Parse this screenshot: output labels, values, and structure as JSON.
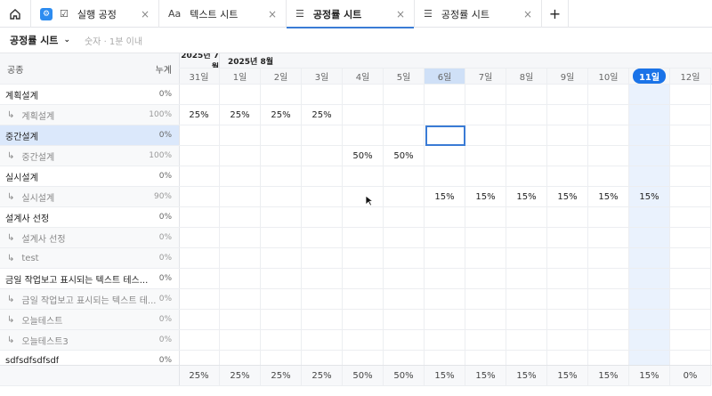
{
  "tabs": [
    {
      "label": "실행 공정",
      "icon": "checkbox-icon",
      "close": "×"
    },
    {
      "label": "텍스트 시트",
      "icon": "text-format-icon",
      "close": "×"
    },
    {
      "label": "공정률 시트",
      "icon": "numbered-list-icon",
      "close": "×",
      "active": true
    },
    {
      "label": "공정률 시트",
      "icon": "numbered-list-icon",
      "close": "×"
    }
  ],
  "add_tab": "+",
  "toolbar": {
    "sheet_name": "공정률 시트",
    "hint": "숫자 · 1분 이내"
  },
  "header": {
    "col_name": "공종",
    "col_total": "누계",
    "months": [
      "2025년 7월",
      "2025년 8월"
    ],
    "days": [
      "31일",
      "1일",
      "2일",
      "3일",
      "4일",
      "5일",
      "6일",
      "7일",
      "8일",
      "9일",
      "10일",
      "11일",
      "12일"
    ],
    "today": "11일",
    "selected_day": "6일"
  },
  "rows": [
    {
      "name": "계획설계",
      "total": "0%",
      "child": false,
      "values": [
        "",
        "",
        "",
        "",
        "",
        "",
        "",
        "",
        "",
        "",
        "",
        "",
        ""
      ]
    },
    {
      "name": "계획설계",
      "total": "100%",
      "child": true,
      "values": [
        "25%",
        "25%",
        "25%",
        "25%",
        "",
        "",
        "",
        "",
        "",
        "",
        "",
        "",
        ""
      ]
    },
    {
      "name": "중간설계",
      "total": "0%",
      "child": false,
      "selected": true,
      "values": [
        "",
        "",
        "",
        "",
        "",
        "",
        "",
        "",
        "",
        "",
        "",
        "",
        ""
      ]
    },
    {
      "name": "중간설계",
      "total": "100%",
      "child": true,
      "values": [
        "",
        "",
        "",
        "",
        "50%",
        "50%",
        "",
        "",
        "",
        "",
        "",
        "",
        ""
      ]
    },
    {
      "name": "실시설계",
      "total": "0%",
      "child": false,
      "values": [
        "",
        "",
        "",
        "",
        "",
        "",
        "",
        "",
        "",
        "",
        "",
        "",
        ""
      ]
    },
    {
      "name": "실시설계",
      "total": "90%",
      "child": true,
      "values": [
        "",
        "",
        "",
        "",
        "",
        "",
        "15%",
        "15%",
        "15%",
        "15%",
        "15%",
        "15%",
        ""
      ]
    },
    {
      "name": "설계사 선정",
      "total": "0%",
      "child": false,
      "values": []
    },
    {
      "name": "설계사 선정",
      "total": "0%",
      "child": true,
      "values": []
    },
    {
      "name": "test",
      "total": "0%",
      "child": true,
      "values": []
    },
    {
      "name": "금일 작업보고 표시되는 텍스트 테스...",
      "total": "0%",
      "child": false,
      "values": []
    },
    {
      "name": "금일 작업보고 표시되는 텍스트 테...",
      "total": "0%",
      "child": true,
      "values": []
    },
    {
      "name": "오늘테스트",
      "total": "0%",
      "child": true,
      "values": []
    },
    {
      "name": "오늘테스트3",
      "total": "0%",
      "child": true,
      "values": []
    },
    {
      "name": "sdfsdfsdfsdf",
      "total": "0%",
      "child": false,
      "values": []
    }
  ],
  "footer": [
    "25%",
    "25%",
    "25%",
    "25%",
    "50%",
    "50%",
    "15%",
    "15%",
    "15%",
    "15%",
    "15%",
    "15%",
    "0%"
  ],
  "colors": {
    "accent": "#3a7bd5",
    "today_badge": "#1a73e8",
    "selected_row": "#dbe8fb",
    "today_col": "#eaf2fd"
  }
}
